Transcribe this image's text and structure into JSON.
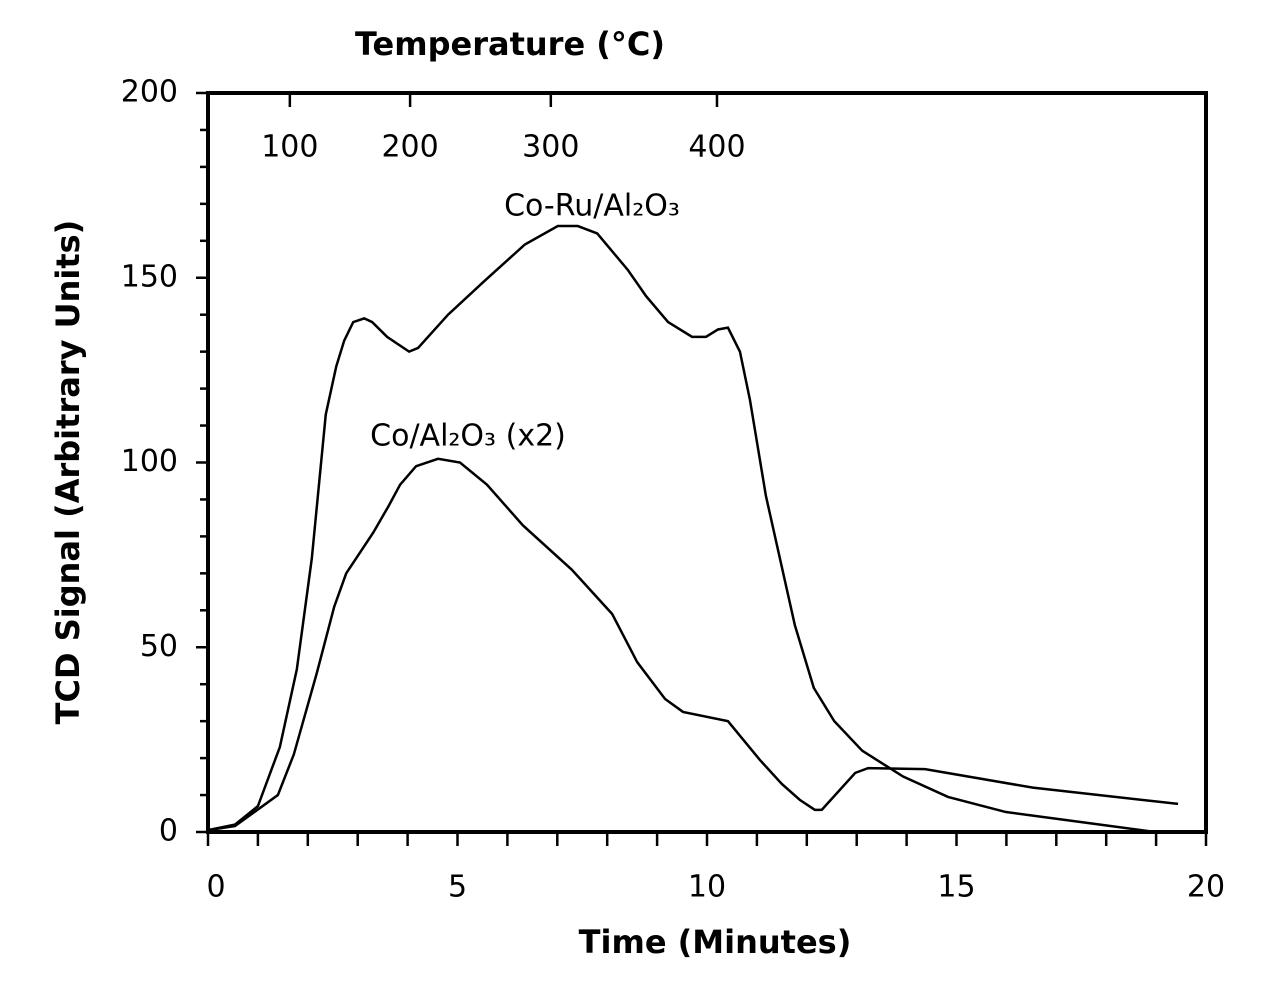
{
  "chart_data": {
    "type": "line",
    "top_axis_title": "Temperature (°C)",
    "xlabel": "Time (Minutes)",
    "ylabel": "TCD Signal (Arbitrary Units)",
    "series": [
      {
        "name": "Co-Ru/Al₂O₃",
        "color": "#000000",
        "x": [
          0,
          0.54,
          1,
          1.44,
          1.78,
          2.08,
          2.36,
          2.57,
          2.73,
          2.91,
          3.13,
          3.29,
          3.59,
          4.03,
          4.21,
          4.81,
          5.53,
          6.35,
          7.01,
          7.41,
          7.8,
          8.42,
          8.78,
          9.22,
          9.7,
          9.98,
          10.22,
          10.42,
          10.66,
          10.86,
          11.18,
          11.76,
          12.14,
          12.55,
          13.11,
          13.93,
          14.83,
          15.99,
          17.88,
          18.98
        ],
        "values": [
          0.5,
          2,
          7,
          23,
          44,
          74,
          113,
          126,
          133,
          138,
          139,
          138,
          134,
          130,
          131,
          140,
          149,
          159,
          164,
          164,
          162,
          152,
          145,
          138,
          134,
          134,
          136,
          136.5,
          130,
          117,
          91,
          56,
          39,
          30,
          22,
          15,
          9.5,
          5.4,
          2,
          0
        ]
      },
      {
        "name": "Co/Al₂O₃ (x2)",
        "color": "#000000",
        "x": [
          0,
          0.54,
          1.4,
          1.72,
          2.18,
          2.53,
          2.77,
          3.31,
          3.61,
          3.85,
          4.17,
          4.61,
          5.05,
          5.59,
          6.31,
          7.29,
          8.1,
          8.6,
          9.16,
          9.52,
          10.42,
          11.06,
          11.5,
          11.86,
          12.16,
          12.3,
          12.97,
          13.23,
          14.37,
          16.53,
          19.44
        ],
        "values": [
          0.5,
          1.6,
          10,
          21,
          43,
          61,
          70,
          81,
          88,
          94,
          99,
          101,
          100,
          94,
          83,
          71,
          59,
          46,
          36,
          32.5,
          30,
          19.5,
          13,
          8.7,
          6,
          6,
          16,
          17.3,
          17,
          12,
          7.6
        ]
      }
    ],
    "xlim": [
      0,
      20
    ],
    "xticks": [
      0,
      5,
      10,
      15,
      20
    ],
    "xminorticks": [
      1,
      2,
      3,
      4,
      6,
      7,
      8,
      9,
      11,
      12,
      13,
      14,
      16,
      17,
      18,
      19
    ],
    "ylim": [
      0,
      200
    ],
    "yticks": [
      0,
      50,
      100,
      150,
      200
    ],
    "yminorticks": [
      10,
      20,
      30,
      40,
      60,
      70,
      80,
      90,
      110,
      120,
      130,
      140,
      160,
      170,
      180,
      190
    ],
    "x2ticks": [
      {
        "value": 1.64,
        "label": "100"
      },
      {
        "value": 4.05,
        "label": "200"
      },
      {
        "value": 6.87,
        "label": "300"
      },
      {
        "value": 10.2,
        "label": "400"
      }
    ],
    "grid": false
  }
}
